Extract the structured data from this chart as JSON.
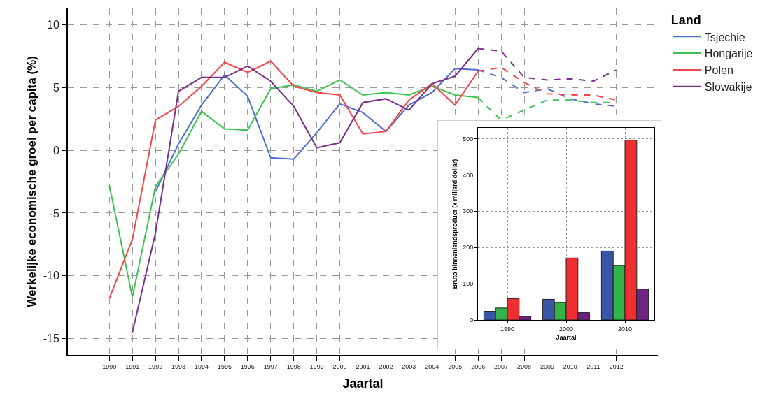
{
  "chart_data": [
    {
      "type": "line",
      "xlabel": "Jaartal",
      "ylabel": "Werkelijke economische groei per capita (%)",
      "legend_title": "Land",
      "legend": "top right",
      "grid": true,
      "line_style": "solid",
      "marker": "none",
      "x": [
        1990,
        1991,
        1992,
        1993,
        1994,
        1995,
        1996,
        1997,
        1998,
        1999,
        2000,
        2001,
        2002,
        2003,
        2004,
        2005,
        2006
      ],
      "xlim": [
        1988.2,
        2013.8
      ],
      "xticks": [
        1990,
        1991,
        1992,
        1993,
        1994,
        1995,
        1996,
        1997,
        1998,
        1999,
        2000,
        2001,
        2002,
        2003,
        2004,
        2005,
        2006,
        2007,
        2008,
        2009,
        2010,
        2011,
        2012
      ],
      "ylim": [
        -16.3,
        11.3
      ],
      "yticks": [
        -15,
        -10,
        -5,
        0,
        5,
        10
      ],
      "series": [
        {
          "name": "Tsjechie",
          "color": "#4d6fcf",
          "values": [
            null,
            null,
            -3.3,
            0.5,
            3.6,
            6.0,
            4.3,
            -0.6,
            -0.7,
            1.4,
            3.7,
            3.0,
            1.5,
            3.6,
            4.6,
            6.5,
            6.4
          ]
        },
        {
          "name": "Hongarije",
          "color": "#3cc451",
          "values": [
            -2.8,
            -11.7,
            -2.9,
            -0.3,
            3.1,
            1.7,
            1.6,
            4.9,
            5.2,
            4.7,
            5.6,
            4.4,
            4.6,
            4.4,
            5.1,
            4.4,
            4.2
          ]
        },
        {
          "name": "Polen",
          "color": "#f7464a",
          "values": [
            -11.8,
            -7.1,
            2.4,
            3.5,
            5.1,
            7.0,
            6.2,
            7.1,
            5.1,
            4.6,
            4.4,
            1.3,
            1.5,
            4.0,
            5.3,
            3.6,
            6.3
          ]
        },
        {
          "name": "Slowakije",
          "color": "#7b2e8b",
          "values": [
            null,
            -14.5,
            -6.6,
            4.7,
            5.8,
            5.8,
            6.7,
            5.5,
            3.5,
            0.2,
            0.6,
            3.8,
            4.1,
            3.2,
            5.3,
            5.9,
            8.1
          ]
        },
        {
          "color": "#4d6fcf",
          "line_style": "dashed",
          "x": [
            2006,
            2007,
            2008,
            2009,
            2010,
            2011,
            2012
          ],
          "values": [
            6.4,
            5.8,
            4.6,
            4.9,
            4.1,
            3.7,
            3.5
          ]
        },
        {
          "color": "#3cc451",
          "line_style": "dashed",
          "x": [
            2006,
            2007,
            2008,
            2009,
            2010,
            2011,
            2012
          ],
          "values": [
            4.2,
            2.4,
            3.2,
            4.0,
            4.0,
            3.8,
            3.8
          ]
        },
        {
          "color": "#f7464a",
          "line_style": "dashed",
          "x": [
            2006,
            2007,
            2008,
            2009,
            2010,
            2011,
            2012
          ],
          "values": [
            6.3,
            6.6,
            5.4,
            4.5,
            4.4,
            4.4,
            4.0
          ]
        },
        {
          "color": "#7b2e8b",
          "line_style": "dashed",
          "x": [
            2006,
            2007,
            2008,
            2009,
            2010,
            2011,
            2012
          ],
          "values": [
            8.1,
            7.9,
            5.8,
            5.6,
            5.7,
            5.5,
            6.4
          ]
        }
      ]
    },
    {
      "type": "bar",
      "xlabel": "Jaartal",
      "ylabel": "Bruto binnenlandsproduct (x miljard dollar)",
      "grid": true,
      "categories": [
        "1990",
        "2000",
        "2010"
      ],
      "ylim": [
        0,
        530
      ],
      "yticks": [
        0,
        100,
        200,
        300,
        400,
        500
      ],
      "series": [
        {
          "color": "#3a55a4",
          "values": [
            24,
            57,
            190
          ]
        },
        {
          "color": "#34b34a",
          "values": [
            33,
            48,
            150
          ]
        },
        {
          "color": "#ee2e31",
          "values": [
            59,
            171,
            496
          ]
        },
        {
          "color": "#6f2381",
          "values": [
            10,
            20,
            85
          ]
        }
      ]
    }
  ]
}
